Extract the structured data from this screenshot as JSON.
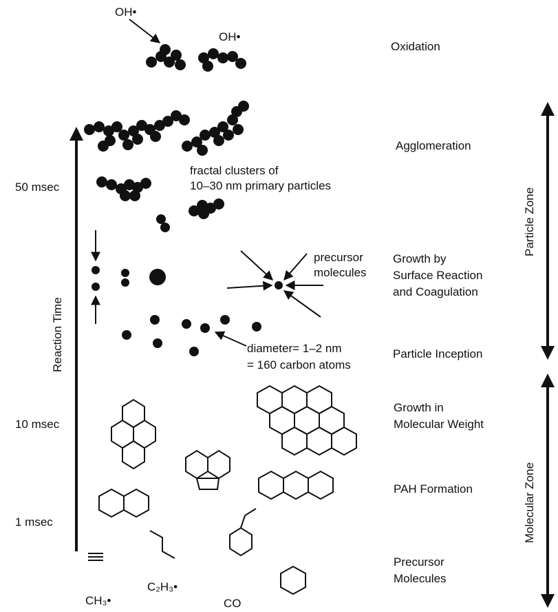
{
  "stage_labels": {
    "oxidation": "Oxidation",
    "agglomeration": "Agglomeration",
    "growth_surface_1": "Growth by",
    "growth_surface_2": "Surface Reaction",
    "growth_surface_3": "and Coagulation",
    "particle_inception": "Particle Inception",
    "growth_mw_1": "Growth in",
    "growth_mw_2": "Molecular Weight",
    "pah_formation": "PAH Formation",
    "precursor_1": "Precursor",
    "precursor_2": "Molecules"
  },
  "zones": {
    "particle": "Particle Zone",
    "molecular": "Molecular Zone"
  },
  "time_axis": {
    "label": "Reaction Time",
    "ticks": [
      "50 msec",
      "10 msec",
      "1 msec"
    ]
  },
  "annotations": {
    "oh_1": "OH•",
    "oh_2": "OH•",
    "fractal_1": "fractal clusters of",
    "fractal_2": "10–30 nm primary particles",
    "precursor_mol_1": "precursor",
    "precursor_mol_2": "molecules",
    "diameter_1": "diameter= 1–2 nm",
    "diameter_2": "= 160 carbon atoms"
  },
  "species": {
    "ch3": "CH₃•",
    "c2h3": "C₂H₃•",
    "co": "CO"
  }
}
